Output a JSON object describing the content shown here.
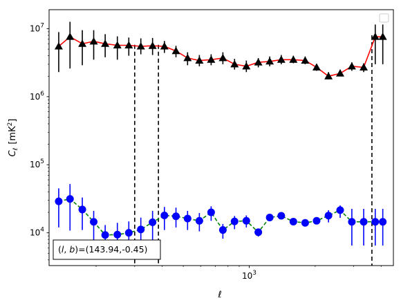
{
  "chart_data": {
    "type": "line",
    "xscale": "log",
    "yscale": "log",
    "xlim": [
      122,
      4550
    ],
    "ylim": [
      3300,
      19000000
    ],
    "xlabel_main": "ℓ",
    "ylabel_main": "C",
    "ylabel_sub": "ℓ",
    "ylabel_unit_open": "[mK",
    "ylabel_unit_sup": "2",
    "ylabel_unit_close": "]",
    "x_tick_base": "10",
    "x_ticks": [
      {
        "value": 1000,
        "exp": "3"
      }
    ],
    "y_ticks": [
      {
        "value": 10000,
        "exp": "4"
      },
      {
        "value": 100000,
        "exp": "5"
      },
      {
        "value": 1000000,
        "exp": "6"
      },
      {
        "value": 10000000,
        "exp": "7"
      }
    ],
    "annotation": {
      "prefix": "(",
      "l": "l",
      "comma": ", ",
      "b": "b",
      "suffix": ")=(143.94,-0.45)"
    },
    "vlines": [
      {
        "x": 300,
        "y_top": 5800000
      },
      {
        "x": 385,
        "y_top": 5800000
      },
      {
        "x": 3630,
        "y_top": 8000000
      }
    ],
    "series": [
      {
        "line_color": "#ff0000",
        "marker": "triangle",
        "marker_color": "#000000",
        "linestyle": "solid",
        "x": [
          135,
          152,
          173,
          195,
          220,
          250,
          282,
          320,
          362,
          410,
          463,
          523,
          592,
          670,
          758,
          857,
          970,
          1100,
          1240,
          1400,
          1590,
          1800,
          2030,
          2300,
          2600,
          2940,
          3330,
          3760,
          4070
        ],
        "y": [
          5500000,
          7600000,
          6000000,
          6500000,
          6000000,
          5700000,
          5700000,
          5500000,
          5600000,
          5500000,
          4700000,
          3700000,
          3400000,
          3500000,
          3700000,
          3000000,
          2800000,
          3200000,
          3300000,
          3500000,
          3500000,
          3400000,
          2700000,
          2000000,
          2200000,
          2800000,
          2700000,
          7600000,
          7600000
        ],
        "yerr_low": [
          2300000,
          2600000,
          2900000,
          3500000,
          3800000,
          3500000,
          4000000,
          4200000,
          4100000,
          4400000,
          3800000,
          2900000,
          2800000,
          2900000,
          3000000,
          2500000,
          2300000,
          2700000,
          2800000,
          3000000,
          3100000,
          3000000,
          2400000,
          1800000,
          2000000,
          2400000,
          2300000,
          3000000,
          3000000
        ],
        "yerr_high": [
          8900000,
          12600000,
          9500000,
          9500000,
          8300000,
          7700000,
          7400000,
          7200000,
          7300000,
          6600000,
          5600000,
          4500000,
          4100000,
          4200000,
          4500000,
          3600000,
          3400000,
          3700000,
          3900000,
          4100000,
          4000000,
          3900000,
          3000000,
          2300000,
          2500000,
          3200000,
          3100000,
          11500000,
          11500000
        ]
      },
      {
        "line_color": "#008000",
        "marker": "circle",
        "marker_color": "#0000ff",
        "linestyle": "dashed",
        "x": [
          135,
          152,
          173,
          195,
          220,
          250,
          282,
          320,
          362,
          410,
          463,
          523,
          592,
          670,
          758,
          857,
          970,
          1100,
          1240,
          1400,
          1590,
          1800,
          2030,
          2300,
          2600,
          2940,
          3330,
          3760,
          4070
        ],
        "y": [
          29000,
          31500,
          22000,
          14500,
          9300,
          9400,
          10000,
          11200,
          14300,
          18000,
          17500,
          16200,
          15000,
          20000,
          11000,
          14700,
          15000,
          10200,
          16800,
          17800,
          14600,
          14000,
          15000,
          17900,
          21500,
          14500,
          14500,
          14500,
          14500
        ],
        "yerr_low": [
          12000,
          10800,
          11000,
          6000,
          6000,
          5800,
          6000,
          6500,
          7000,
          11000,
          12000,
          11000,
          10500,
          15000,
          8200,
          11300,
          12000,
          8800,
          15000,
          16500,
          13000,
          12500,
          13300,
          14200,
          16600,
          6500,
          6500,
          6500,
          6500
        ],
        "yerr_high": [
          45000,
          52000,
          33000,
          21000,
          13000,
          14000,
          14700,
          16700,
          21000,
          24000,
          23400,
          21000,
          19500,
          24500,
          13500,
          17700,
          18000,
          11500,
          18800,
          19200,
          16400,
          15700,
          16800,
          21500,
          25300,
          22500,
          22500,
          22500,
          22500
        ]
      }
    ]
  }
}
